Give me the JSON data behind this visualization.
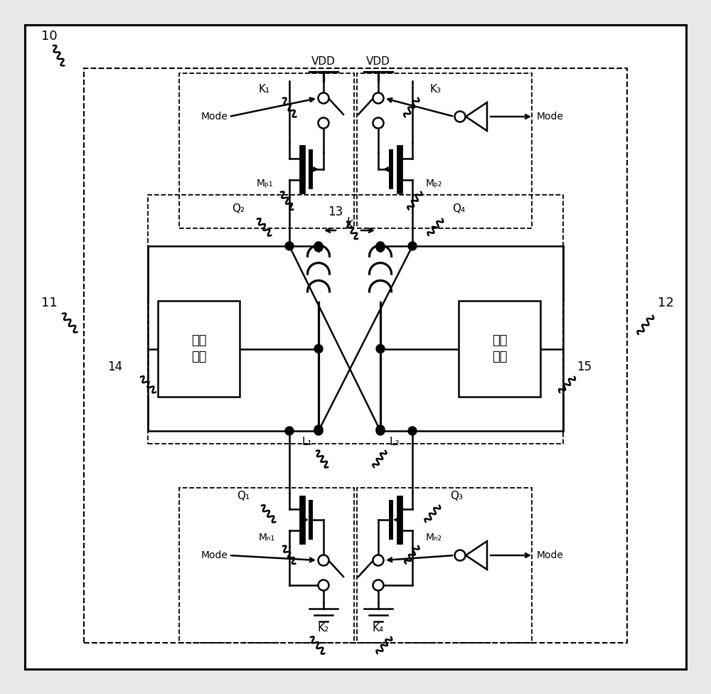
{
  "bg_color": "#e8e8e8",
  "white": "#ffffff",
  "black": "#000000",
  "labels": {
    "n10": "10",
    "n11": "11",
    "n12": "12",
    "n13": "13",
    "n14": "14",
    "n15": "15",
    "vdd": "VDD",
    "mode": "Mode",
    "k1": "K₁",
    "k2": "K₂",
    "k3": "K₃",
    "k4": "K₄",
    "mp1": "Mₚ₁",
    "mp2": "Mₚ₂",
    "mn1": "Mₙ₁",
    "mn2": "Mₙ₂",
    "q1": "Q₁",
    "q2": "Q₂",
    "q3": "Q₃",
    "q4": "Q₄",
    "l1": "L₁",
    "l2": "L₂",
    "k_label": "k",
    "cap": "电容\n单元"
  }
}
